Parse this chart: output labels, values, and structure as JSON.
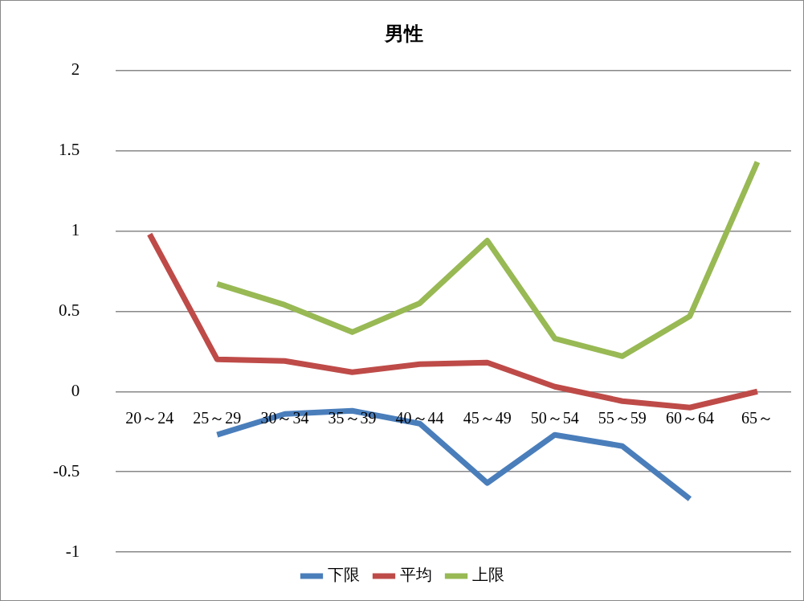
{
  "chart_data": {
    "type": "line",
    "title": "男性",
    "categories": [
      "20～24",
      "25～29",
      "30～34",
      "35～39",
      "40～44",
      "45～49",
      "50～54",
      "55～59",
      "60～64",
      "65～"
    ],
    "series": [
      {
        "name": "下限",
        "color": "#4a7ebb",
        "values": [
          null,
          -0.27,
          -0.14,
          -0.12,
          -0.2,
          -0.57,
          -0.27,
          -0.34,
          -0.67,
          null
        ]
      },
      {
        "name": "平均",
        "color": "#be4b48",
        "values": [
          0.98,
          0.2,
          0.19,
          0.12,
          0.17,
          0.18,
          0.03,
          -0.06,
          -0.1,
          0.0
        ]
      },
      {
        "name": "上限",
        "color": "#98b954",
        "values": [
          null,
          0.67,
          0.54,
          0.37,
          0.55,
          0.94,
          0.33,
          0.22,
          0.47,
          1.43
        ]
      }
    ],
    "ylim": [
      -1,
      2
    ],
    "yticks": [
      -1,
      -0.5,
      0,
      0.5,
      1,
      1.5,
      2
    ],
    "grid": "y",
    "legend": "bottom",
    "marker": "none",
    "line_style": "solid"
  }
}
